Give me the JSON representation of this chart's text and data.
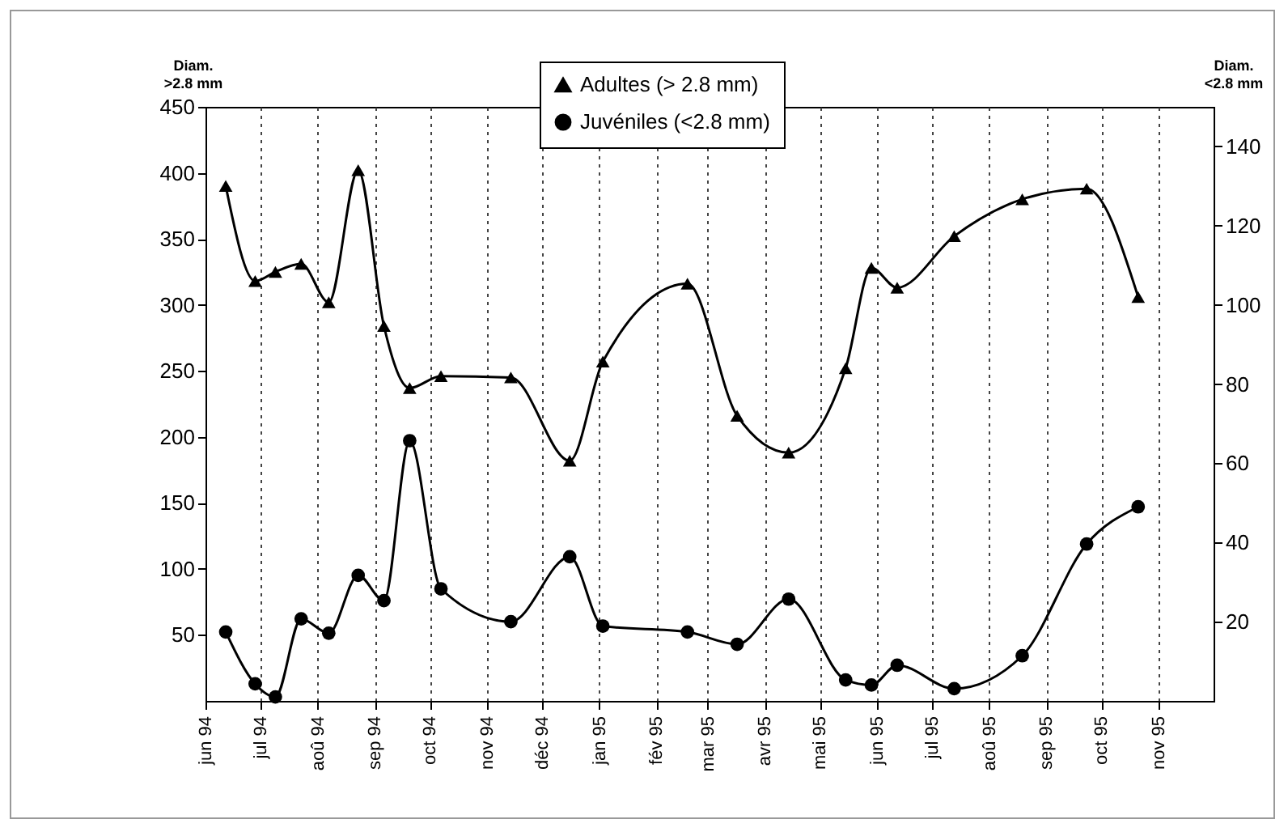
{
  "chart_data": {
    "type": "line",
    "ylabel": "Diam.\n>2.8 mm",
    "y2label": "Diam.\n<2.8 mm",
    "x": [
      "1994-06-12",
      "1994-06-28",
      "1994-07-09",
      "1994-07-23",
      "1994-08-07",
      "1994-08-23",
      "1994-09-06",
      "1994-09-20",
      "1994-10-07",
      "1994-11-14",
      "1994-12-16",
      "1995-01-03",
      "1995-02-18",
      "1995-03-17",
      "1995-04-14",
      "1995-05-15",
      "1995-05-29",
      "1995-06-12",
      "1995-07-13",
      "1995-08-19",
      "1995-09-23",
      "1995-10-21"
    ],
    "xlim": [
      "1994-06",
      "1995-12"
    ],
    "xticks": [
      {
        "value": "1994-06",
        "label": "jun 94"
      },
      {
        "value": "1994-07",
        "label": "jul 94"
      },
      {
        "value": "1994-08",
        "label": "aoû 94"
      },
      {
        "value": "1994-09",
        "label": "sep 94"
      },
      {
        "value": "1994-10",
        "label": "oct 94"
      },
      {
        "value": "1994-11",
        "label": "nov 94"
      },
      {
        "value": "1994-12",
        "label": "déc 94"
      },
      {
        "value": "1995-01",
        "label": "jan 95"
      },
      {
        "value": "1995-02",
        "label": "fév 95"
      },
      {
        "value": "1995-03",
        "label": "mar 95"
      },
      {
        "value": "1995-04",
        "label": "avr 95"
      },
      {
        "value": "1995-05",
        "label": "mai 95"
      },
      {
        "value": "1995-06",
        "label": "jun 95"
      },
      {
        "value": "1995-07",
        "label": "jul 95"
      },
      {
        "value": "1995-08",
        "label": "aoû 95"
      },
      {
        "value": "1995-09",
        "label": "sep 95"
      },
      {
        "value": "1995-10",
        "label": "oct 95"
      },
      {
        "value": "1995-11",
        "label": "nov 95"
      }
    ],
    "ylim": [
      0,
      450
    ],
    "yticks": [
      50,
      100,
      150,
      200,
      250,
      300,
      350,
      400,
      450
    ],
    "y2lim": [
      0,
      150
    ],
    "y2ticks": [
      20,
      40,
      60,
      80,
      100,
      120,
      140
    ],
    "grid": "x",
    "legend": "top",
    "series": [
      {
        "name": "Adultes (> 2.8 mm)",
        "color": "#000000",
        "marker": "triangle",
        "values": [
          390,
          318,
          325,
          331,
          302,
          402,
          284,
          237,
          246,
          245,
          182,
          257,
          316,
          216,
          188,
          252,
          328,
          313,
          352,
          380,
          388,
          306
        ]
      },
      {
        "name": "Juvéniles (<2.8 mm)",
        "color": "#000000",
        "marker": "circle",
        "axis": "y2",
        "values": [
          17.4,
          4.3,
          1,
          20.7,
          17.1,
          31.7,
          25.3,
          65.7,
          28.3,
          20,
          36.4,
          18.9,
          17.4,
          14.3,
          25.7,
          5.3,
          4,
          9,
          3.1,
          11.4,
          39.6,
          49
        ]
      }
    ]
  }
}
